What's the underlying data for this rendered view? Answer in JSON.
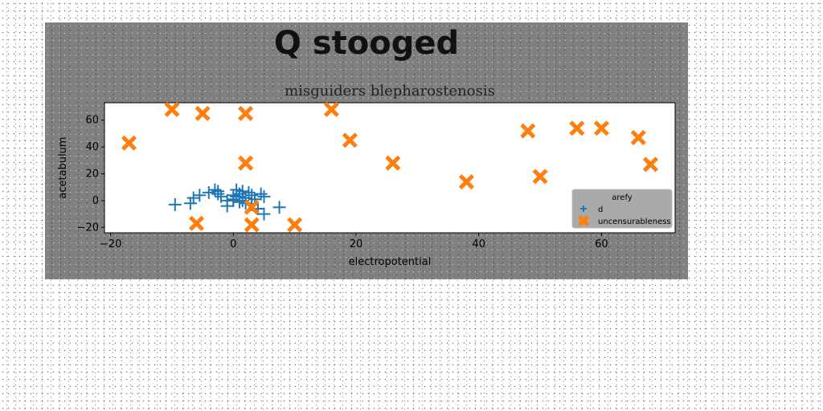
{
  "chart_data": {
    "type": "scatter",
    "suptitle": "Q stooged",
    "title": "misguiders blepharostenosis",
    "xlabel": "electropotential",
    "ylabel": "acetabulum",
    "xlim": [
      -21,
      72
    ],
    "ylim": [
      -24,
      73
    ],
    "xticks": [
      -20,
      0,
      20,
      40,
      60
    ],
    "yticks": [
      -20,
      0,
      20,
      40,
      60
    ],
    "grid": false,
    "legend": {
      "title": "arefy",
      "placement": "lower-right"
    },
    "series": [
      {
        "name": "d",
        "marker": "plus",
        "color": "#1f77b4",
        "points": [
          [
            -9.5,
            -3
          ],
          [
            -7,
            -2
          ],
          [
            -6.5,
            2
          ],
          [
            -5.5,
            4
          ],
          [
            -4,
            6
          ],
          [
            -3,
            8
          ],
          [
            -2.5,
            5
          ],
          [
            -2,
            3
          ],
          [
            -1,
            0
          ],
          [
            0,
            1
          ],
          [
            0.5,
            3
          ],
          [
            1,
            5
          ],
          [
            1.5,
            7
          ],
          [
            2,
            2
          ],
          [
            2.5,
            6
          ],
          [
            3,
            4
          ],
          [
            3.5,
            1
          ],
          [
            4.5,
            5
          ],
          [
            5,
            3
          ],
          [
            1,
            -1
          ],
          [
            1.5,
            0
          ],
          [
            2,
            -2
          ],
          [
            0,
            4
          ],
          [
            1,
            3
          ],
          [
            -1,
            -4
          ],
          [
            3,
            -3
          ],
          [
            4,
            -6
          ],
          [
            5,
            -10
          ],
          [
            7.5,
            -5
          ],
          [
            0.5,
            8
          ],
          [
            -2.5,
            7
          ],
          [
            0,
            0
          ]
        ]
      },
      {
        "name": "uncensurableness",
        "marker": "x",
        "color": "#ff7f0e",
        "points": [
          [
            -17,
            43
          ],
          [
            -10,
            68
          ],
          [
            -5,
            65
          ],
          [
            2,
            65
          ],
          [
            16,
            68
          ],
          [
            19,
            45
          ],
          [
            2,
            28
          ],
          [
            26,
            28
          ],
          [
            38,
            14
          ],
          [
            48,
            52
          ],
          [
            50,
            18
          ],
          [
            56,
            54
          ],
          [
            60,
            54
          ],
          [
            66,
            47
          ],
          [
            68,
            27
          ],
          [
            -6,
            -17
          ],
          [
            3,
            -5
          ],
          [
            3,
            -18
          ],
          [
            10,
            -18
          ]
        ]
      }
    ]
  },
  "colors": {
    "figure_bg": "#808080",
    "axes_bg": "#ffffff"
  }
}
